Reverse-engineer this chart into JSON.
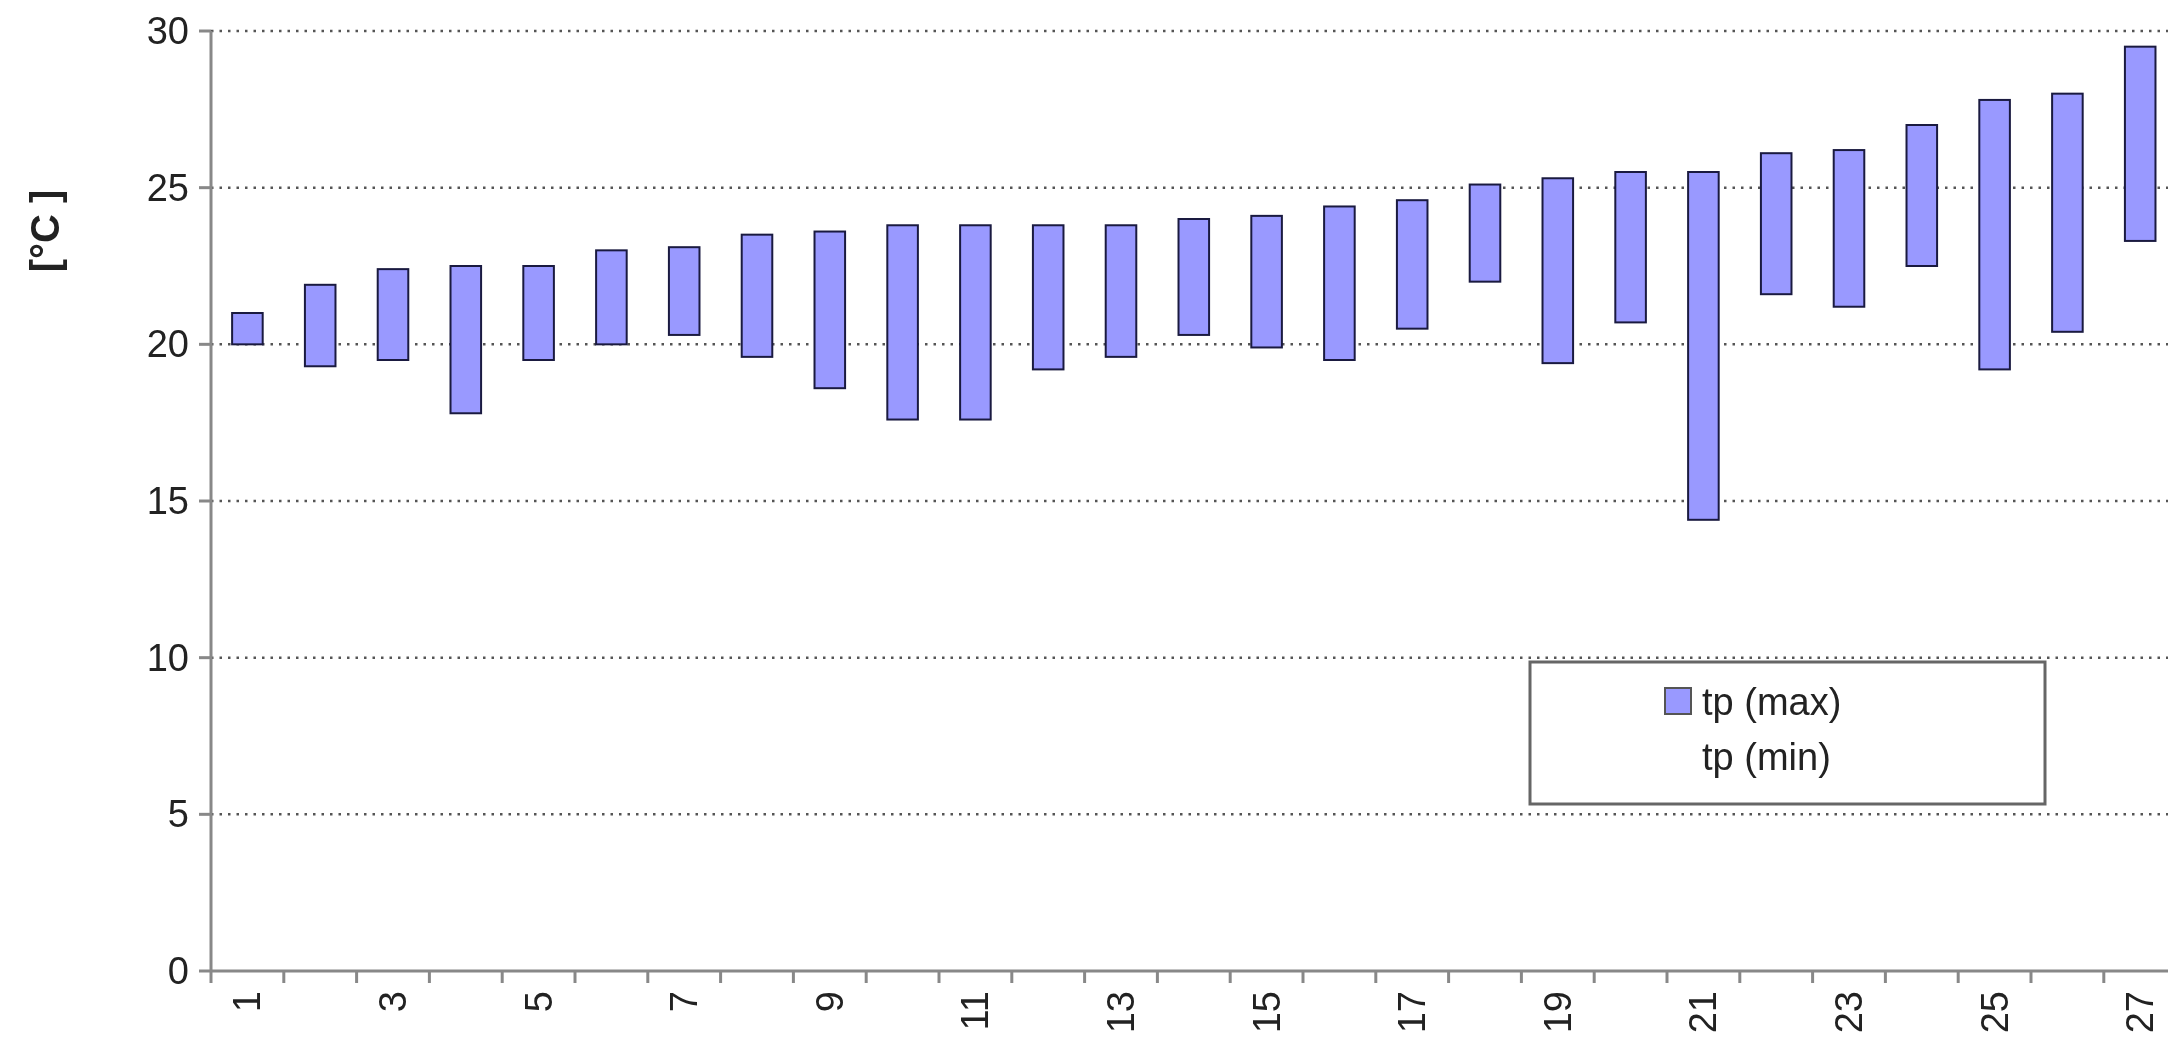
{
  "chart_data": {
    "type": "bar",
    "ylabel": "[°C ]",
    "categories": [
      "1",
      null,
      "3",
      null,
      "5",
      null,
      "7",
      null,
      "9",
      null,
      "11",
      null,
      "13",
      null,
      "15",
      null,
      "17",
      null,
      "19",
      null,
      "21",
      null,
      "23",
      null,
      "25",
      null,
      "27"
    ],
    "series": [
      {
        "name": "tp (max)",
        "color": "#9999ff",
        "base": [
          20.0,
          19.3,
          19.5,
          17.8,
          19.5,
          20.0,
          20.3,
          19.6,
          18.6,
          17.6,
          17.6,
          19.2,
          19.6,
          20.3,
          19.9,
          19.5,
          20.5,
          22.0,
          19.4,
          20.7,
          14.4,
          21.6,
          21.2,
          22.5,
          19.2,
          20.4,
          23.3
        ],
        "values": [
          1.0,
          2.6,
          2.9,
          4.7,
          3.0,
          3.0,
          2.8,
          3.9,
          5.0,
          6.2,
          6.2,
          4.6,
          4.2,
          3.7,
          4.2,
          4.9,
          4.1,
          3.1,
          5.9,
          4.8,
          11.1,
          4.5,
          5.0,
          4.5,
          8.6,
          7.6,
          6.2
        ]
      }
    ],
    "ylim": [
      0,
      30
    ],
    "yticks": [
      0,
      5,
      10,
      15,
      20,
      25,
      30
    ],
    "grid": "y",
    "legend": "bottom right",
    "annotations": [
      "tp (min)"
    ]
  }
}
